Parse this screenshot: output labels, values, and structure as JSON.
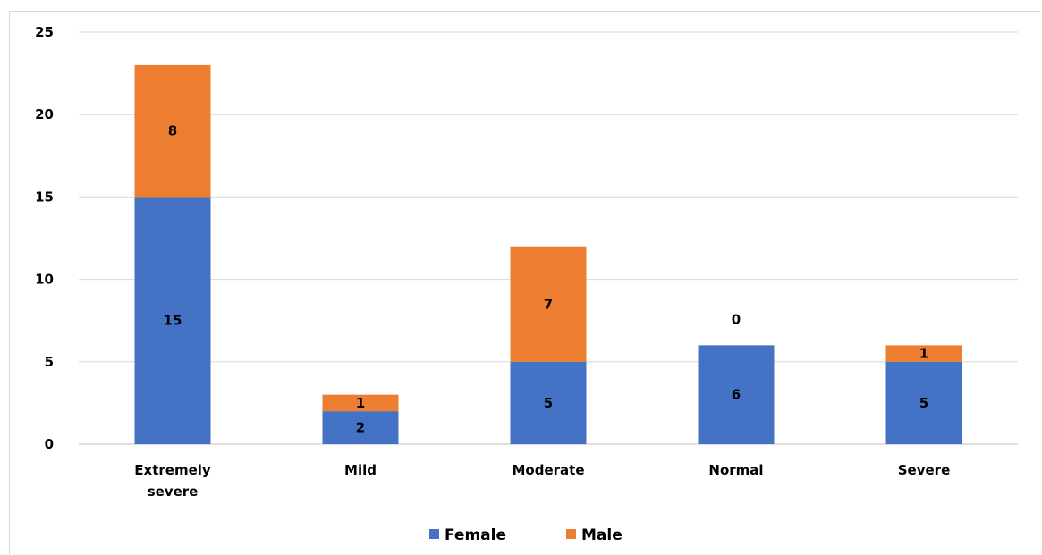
{
  "chart_data": {
    "type": "bar",
    "stacked": true,
    "categories": [
      [
        "Extremely",
        "severe"
      ],
      [
        "Mild"
      ],
      [
        "Moderate"
      ],
      [
        "Normal"
      ],
      [
        "Severe"
      ]
    ],
    "series": [
      {
        "name": "Female",
        "values": [
          15,
          2,
          5,
          6,
          5
        ],
        "color": "#4472C4"
      },
      {
        "name": "Male",
        "values": [
          8,
          1,
          7,
          0,
          1
        ],
        "color": "#ED7D31"
      }
    ],
    "ylim": [
      0,
      25
    ],
    "yticks": [
      0,
      5,
      10,
      15,
      20,
      25
    ],
    "grid": true,
    "legend": "bottom",
    "data_labels": true
  }
}
